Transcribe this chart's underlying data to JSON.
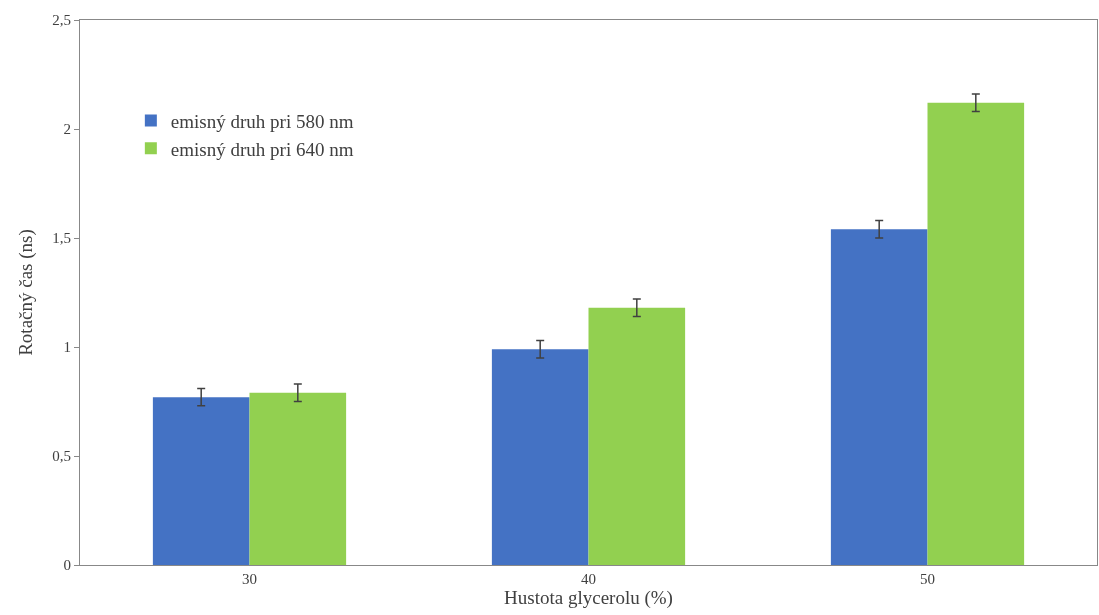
{
  "chart_data": {
    "type": "bar",
    "xlabel": "Hustota glycerolu (%)",
    "ylabel": "Rotačný čas (ns)",
    "categories": [
      "30",
      "40",
      "50"
    ],
    "series": [
      {
        "name": "emisný druh pri 580 nm",
        "color": "#4472c4",
        "values": [
          0.77,
          0.99,
          1.54
        ],
        "errors": [
          0.04,
          0.04,
          0.04
        ]
      },
      {
        "name": "emisný druh pri 640 nm",
        "color": "#92d050",
        "values": [
          0.79,
          1.18,
          2.12
        ],
        "errors": [
          0.04,
          0.04,
          0.04
        ]
      }
    ],
    "ylim": [
      0,
      2.5
    ],
    "yticks": [
      0,
      {
        "value": 0.5,
        "label": "0,5"
      },
      1,
      {
        "value": 1.5,
        "label": "1,5"
      },
      2,
      {
        "value": 2.5,
        "label": "2,5"
      }
    ],
    "grid": false,
    "legend": "top left"
  }
}
